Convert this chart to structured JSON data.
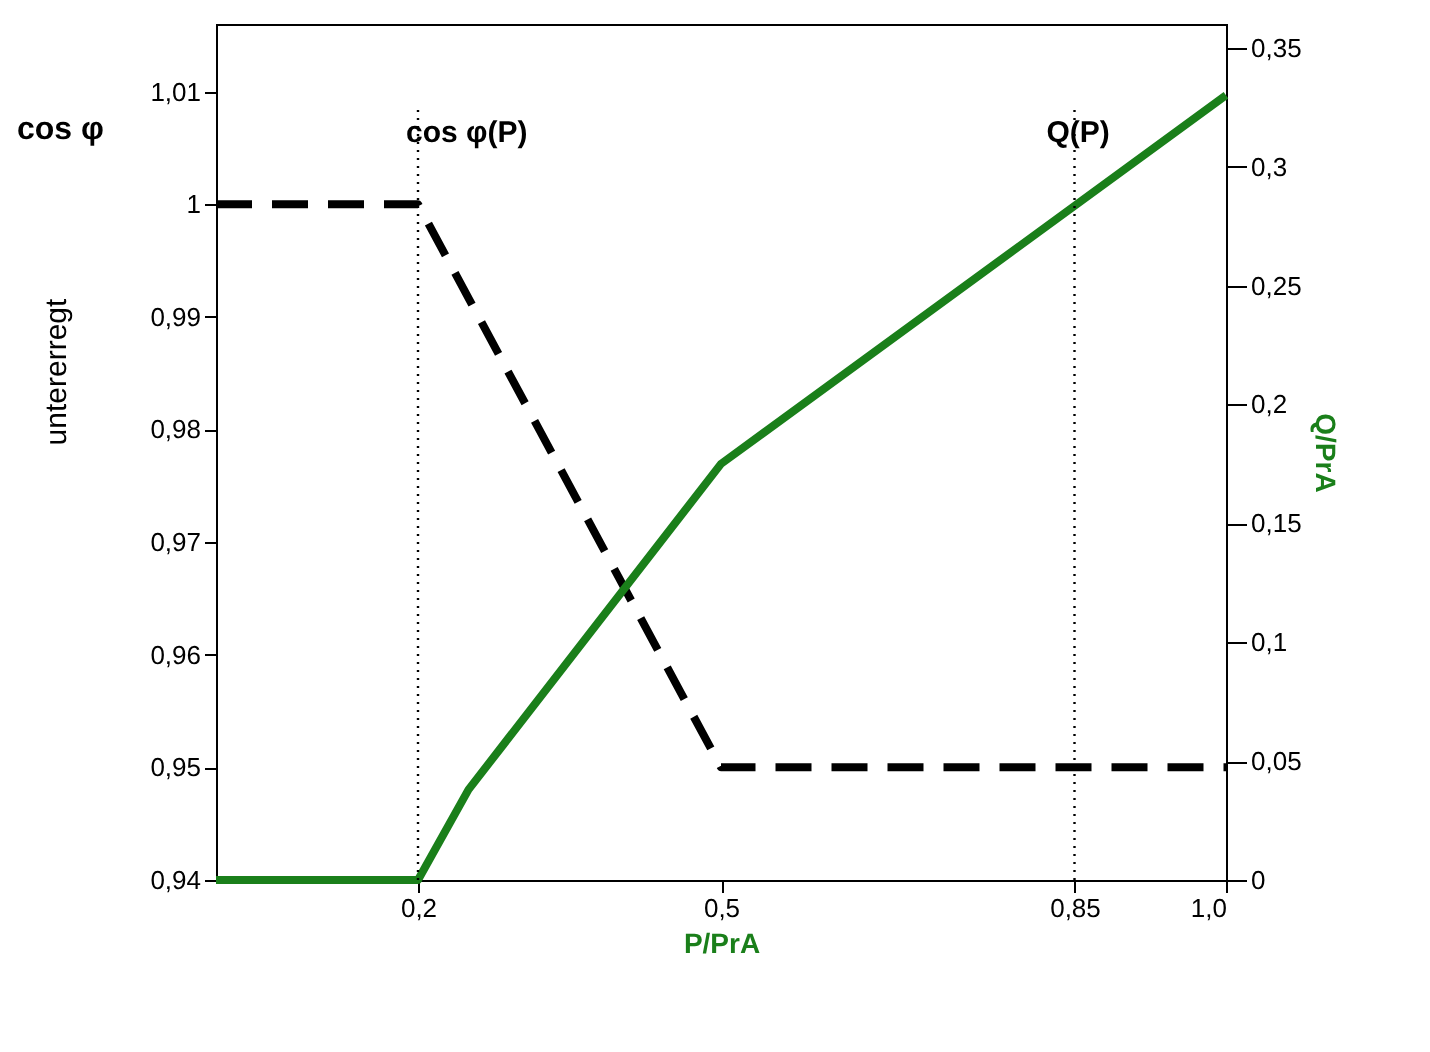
{
  "chart_data": {
    "type": "line",
    "xlabel": "P/PrA",
    "ylabel": "cos φ",
    "y2label": "Q/PrA",
    "annotations": [
      "untererregt"
    ],
    "xlim": [
      0,
      1.0
    ],
    "xticks": [
      {
        "value": 0.2,
        "label": "0,2"
      },
      {
        "value": 0.5,
        "label": "0,5"
      },
      {
        "value": 0.85,
        "label": "0,85"
      },
      {
        "value": 1.0,
        "label": "1,0"
      }
    ],
    "ylim": [
      0.94,
      1.016
    ],
    "yticks": [
      {
        "value": 0.94,
        "label": "0,94"
      },
      {
        "value": 0.95,
        "label": "0,95"
      },
      {
        "value": 0.96,
        "label": "0,96"
      },
      {
        "value": 0.97,
        "label": "0,97"
      },
      {
        "value": 0.98,
        "label": "0,98"
      },
      {
        "value": 0.99,
        "label": "0,99"
      },
      {
        "value": 1,
        "label": "1"
      },
      {
        "value": 1.01,
        "label": "1,01"
      }
    ],
    "y2lim": [
      0,
      0.36
    ],
    "y2ticks": [
      0,
      {
        "value": 0.05,
        "label": "0,05"
      },
      {
        "value": 0.1,
        "label": "0,1"
      },
      {
        "value": 0.15,
        "label": "0,15"
      },
      {
        "value": 0.2,
        "label": "0,2"
      },
      {
        "value": 0.25,
        "label": "0,25"
      },
      {
        "value": 0.3,
        "label": "0,3"
      },
      {
        "value": 0.35,
        "label": "0,35"
      }
    ],
    "grid": false,
    "marker": "none",
    "series": [
      {
        "name": "cos φ(P)",
        "color": "#000000",
        "line_style": "dashed",
        "x": [
          0,
          0.2,
          0.5,
          1.0
        ],
        "values": [
          1,
          1,
          0.95,
          0.95
        ]
      },
      {
        "name": "Q(P)",
        "color": "#1a7f1a",
        "line_style": "solid",
        "axis": "y2",
        "x": [
          0,
          0.2,
          0.25,
          0.5,
          1.0
        ],
        "values": [
          0,
          0,
          0.038,
          0.175,
          0.33
        ]
      }
    ],
    "ref_lines": [
      {
        "axis": "x",
        "value": 0.2,
        "color": "#000000",
        "line_style": "dotted"
      },
      {
        "axis": "x",
        "value": 0.85,
        "color": "#000000",
        "line_style": "dotted"
      }
    ]
  }
}
